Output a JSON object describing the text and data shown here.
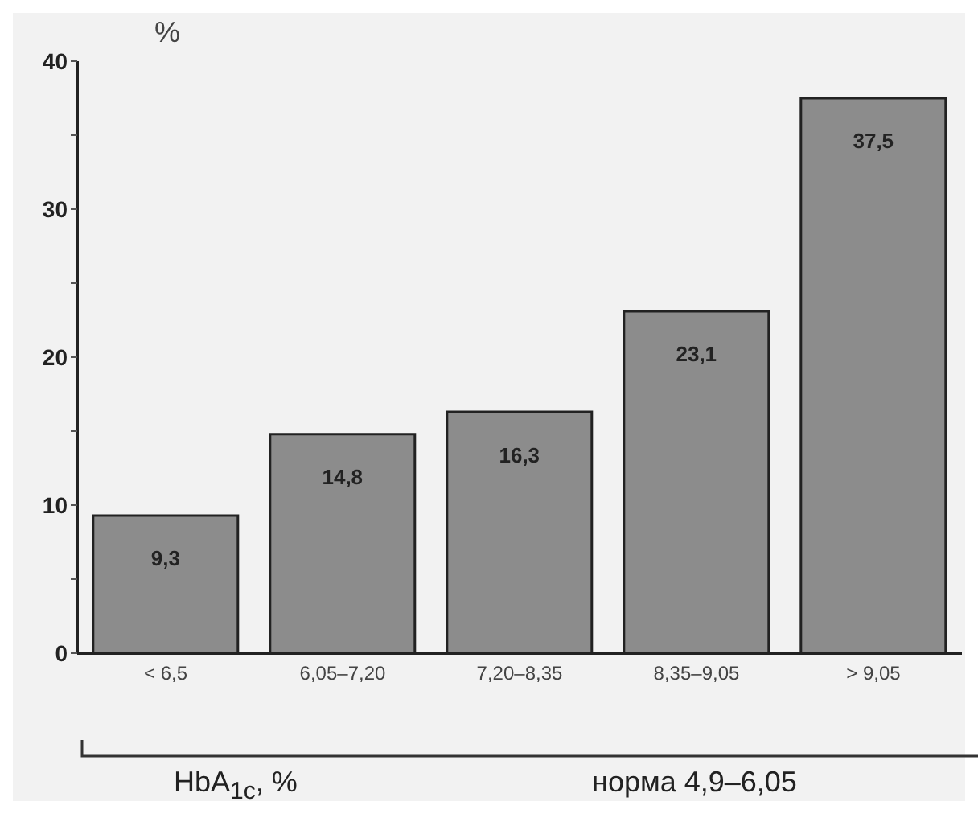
{
  "chart_data": {
    "type": "bar",
    "ylabel": "%",
    "xlabel": "HbA$_{1c}$, %",
    "categories": [
      "< 6,5",
      "6,05–7,20",
      "7,20–8,35",
      "8,35–9,05",
      "> 9,05"
    ],
    "values": [
      9.3,
      14.8,
      16.3,
      23.1,
      37.5
    ],
    "value_labels": [
      "9,3",
      "14,8",
      "16,3",
      "23,1",
      "37,5"
    ],
    "color": "#8c8c8c",
    "ylim": [
      0,
      40
    ],
    "yticks": [
      0,
      {
        "value": 5,
        "label": null
      },
      10,
      {
        "value": 15,
        "label": null
      },
      20,
      {
        "value": 25,
        "label": null
      },
      30,
      {
        "value": 35,
        "label": null
      },
      40
    ],
    "grid": false,
    "annotations": [
      "норма 4,9–6,05"
    ]
  }
}
